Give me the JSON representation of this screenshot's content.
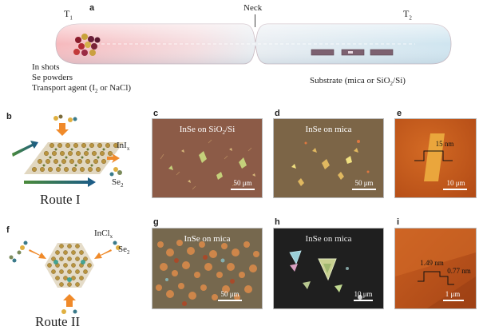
{
  "panel_labels": [
    "a",
    "b",
    "c",
    "d",
    "e",
    "f",
    "g",
    "h",
    "i"
  ],
  "panel_a": {
    "t1": "T",
    "t1_sub": "1",
    "t2": "T",
    "t2_sub": "2",
    "neck": "Neck",
    "reagent_1": "In shots",
    "reagent_2": "Se powders",
    "reagent_3_pre": "Transport agent (I",
    "reagent_3_sub": "2",
    "reagent_3_post": " or NaCl)",
    "substrate_pre": "Substrate (mica or SiO",
    "substrate_sub": "2",
    "substrate_post": "/Si)"
  },
  "panel_b": {
    "reagent_1": "InI",
    "reagent_1_sub": "x",
    "reagent_2": "Se",
    "reagent_2_sub": "2",
    "route": "Route I"
  },
  "panel_f": {
    "reagent_1": "InCl",
    "reagent_1_sub": "x",
    "reagent_2": "Se",
    "reagent_2_sub": "2",
    "route": "Route II"
  },
  "panel_c": {
    "title": "InSe on SiO2/Si",
    "scale": "50 μm"
  },
  "panel_d": {
    "title": "InSe on mica",
    "scale": "50 μm"
  },
  "panel_e": {
    "height": "15 nm",
    "scale": "10 μm"
  },
  "panel_g": {
    "title": "InSe on mica",
    "scale": "50 μm"
  },
  "panel_h": {
    "title": "InSe on mica",
    "scale": "10 μm"
  },
  "panel_i": {
    "height_1": "1.49 nm",
    "height_2": "0.77 nm",
    "scale": "1 μm"
  },
  "colors": {
    "tube_hot": "#f4c2c4",
    "tube_cold": "#d2e6f1",
    "optical_sio2": "#8c5a46",
    "optical_mica": "#7d6648",
    "afm_background": "#c55a1c",
    "afm_flake": "#e9a23a"
  }
}
